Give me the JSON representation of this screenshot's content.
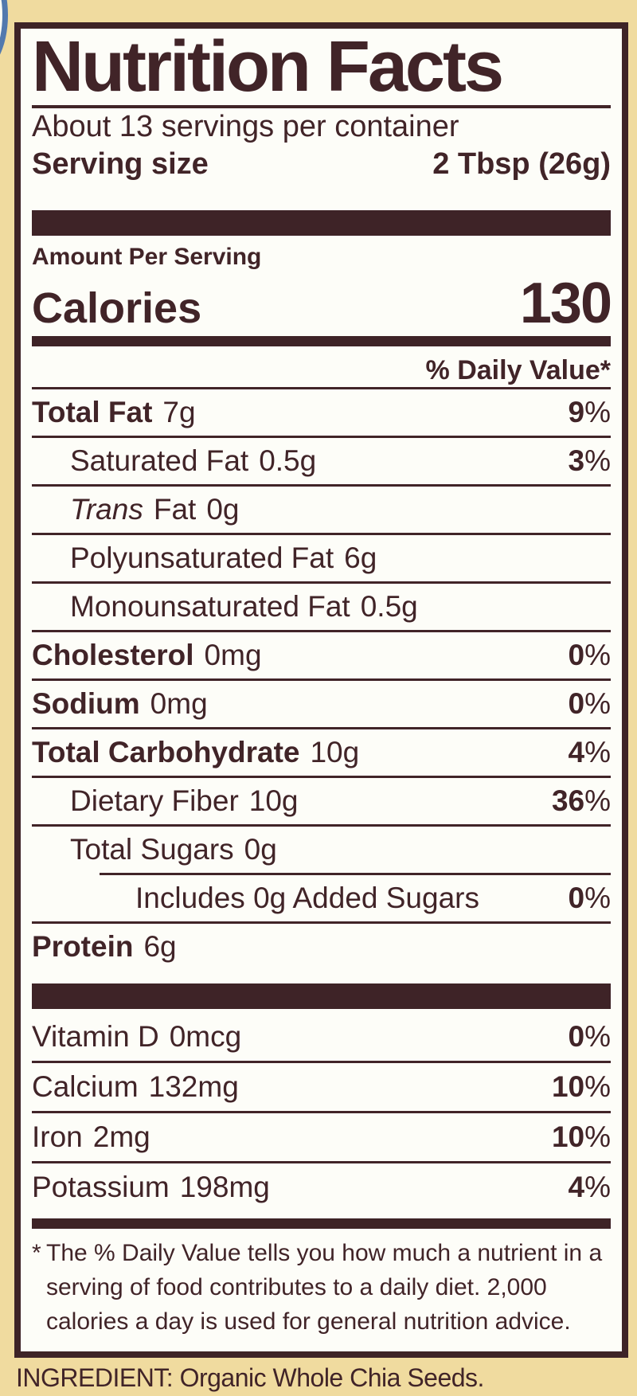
{
  "colors": {
    "background_tan": "#f0db9f",
    "panel_white": "#fdfdf8",
    "ink_brown": "#3e2327",
    "badge_blue": "#5279ae"
  },
  "label": {
    "title": "Nutrition Facts",
    "servings_per_container": "About 13 servings per container",
    "serving_size_label": "Serving size",
    "serving_size_value": "2 Tbsp (26g)",
    "amount_per_serving": "Amount Per Serving",
    "calories_label": "Calories",
    "calories_value": "130",
    "daily_value_header": "% Daily Value*",
    "percent_sign": "%",
    "rows": [
      {
        "name": "Total Fat",
        "amount": "7g",
        "dv": "9"
      },
      {
        "name": "Saturated Fat",
        "amount": "0.5g",
        "dv": "3"
      },
      {
        "name_italic": "Trans",
        "name_rest": "Fat",
        "amount": "0g"
      },
      {
        "name": "Polyunsaturated Fat",
        "amount": "6g"
      },
      {
        "name": "Monounsaturated Fat",
        "amount": "0.5g"
      },
      {
        "name": "Cholesterol",
        "amount": "0mg",
        "dv": "0"
      },
      {
        "name": "Sodium",
        "amount": "0mg",
        "dv": "0"
      },
      {
        "name": "Total Carbohydrate",
        "amount": "10g",
        "dv": "4"
      },
      {
        "name": "Dietary Fiber",
        "amount": "10g",
        "dv": "36"
      },
      {
        "name": "Total Sugars",
        "amount": "0g"
      },
      {
        "name": "Includes 0g Added Sugars",
        "dv": "0"
      },
      {
        "name": "Protein",
        "amount": "6g"
      }
    ],
    "micronutrients": [
      {
        "name": "Vitamin D",
        "amount": "0mcg",
        "dv": "0"
      },
      {
        "name": "Calcium",
        "amount": "132mg",
        "dv": "10"
      },
      {
        "name": "Iron",
        "amount": "2mg",
        "dv": "10"
      },
      {
        "name": "Potassium",
        "amount": "198mg",
        "dv": "4"
      }
    ],
    "footnote_marker": "*",
    "footnote": "The % Daily Value tells you how much a nutrient in a serving of food contributes to a daily diet. 2,000 calories a day is used for general nutrition advice."
  },
  "ingredient_line": "INGREDIENT: Organic Whole Chia Seeds."
}
